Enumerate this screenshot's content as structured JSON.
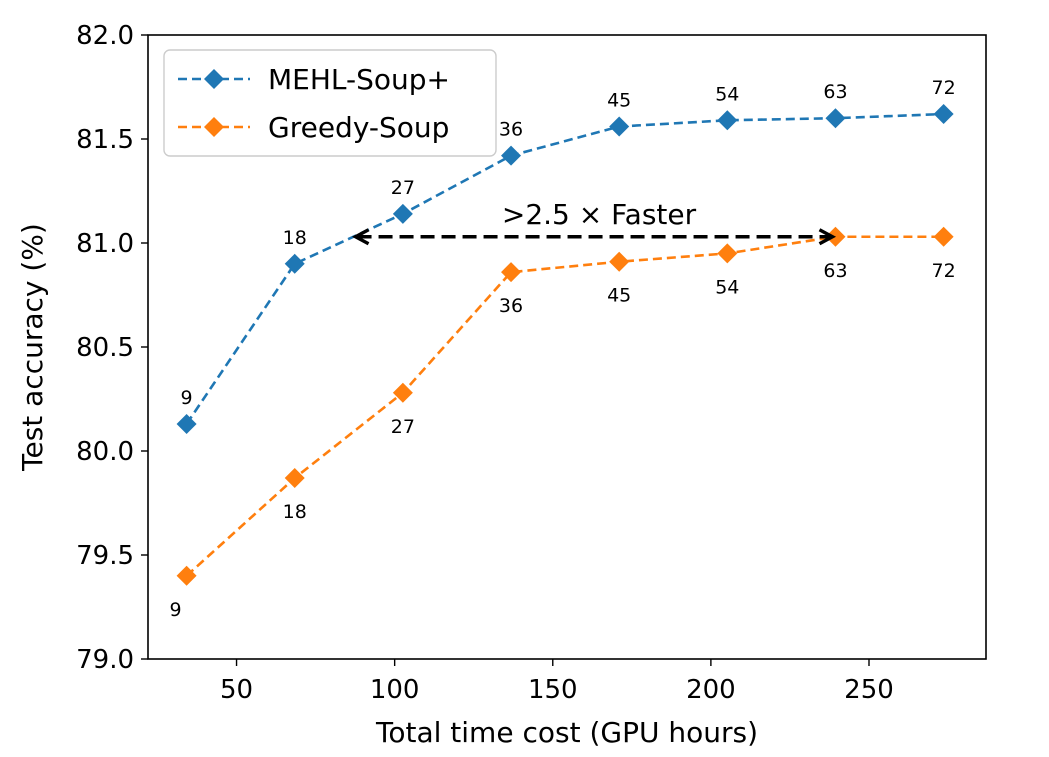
{
  "chart_data": {
    "type": "line",
    "xlabel": "Total time cost (GPU hours)",
    "ylabel": "Test accuracy (%)",
    "xlim": [
      22,
      287
    ],
    "ylim": [
      79.0,
      82.0
    ],
    "xticks": [
      "50",
      "100",
      "150",
      "200",
      "250"
    ],
    "xtick_values": [
      50,
      100,
      150,
      200,
      250
    ],
    "yticks": [
      "79.0",
      "79.5",
      "80.0",
      "80.5",
      "81.0",
      "81.5",
      "82.0"
    ],
    "ytick_values": [
      79.0,
      79.5,
      80.0,
      80.5,
      81.0,
      81.5,
      82.0
    ],
    "grid": false,
    "legend_position": "top-left",
    "series": [
      {
        "name": "MEHL-Soup+",
        "color": "#1f77b4",
        "marker": "diamond",
        "linestyle": "dashed",
        "x": [
          34.2,
          68.4,
          102.6,
          136.8,
          171.0,
          205.2,
          239.4,
          273.6
        ],
        "y": [
          80.13,
          80.9,
          81.14,
          81.42,
          81.56,
          81.59,
          81.6,
          81.62
        ],
        "point_labels": [
          "9",
          "18",
          "27",
          "36",
          "45",
          "54",
          "63",
          "72"
        ],
        "label_placement": "above"
      },
      {
        "name": "Greedy-Soup",
        "color": "#ff7f0e",
        "marker": "diamond",
        "linestyle": "dashed",
        "x": [
          34.2,
          68.4,
          102.6,
          136.8,
          171.0,
          205.2,
          239.4,
          273.6
        ],
        "y": [
          79.4,
          79.87,
          80.28,
          80.86,
          80.91,
          80.95,
          81.03,
          81.03
        ],
        "point_labels": [
          "9",
          "18",
          "27",
          "36",
          "45",
          "54",
          "63",
          "72"
        ],
        "label_placement": "below"
      }
    ],
    "annotation": {
      "text": ">2.5 × Faster",
      "arrow_from_x": 87,
      "arrow_to_x": 239.4,
      "arrow_y": 81.03,
      "arrow_style": "double-headed dashed",
      "color": "#000000"
    }
  }
}
